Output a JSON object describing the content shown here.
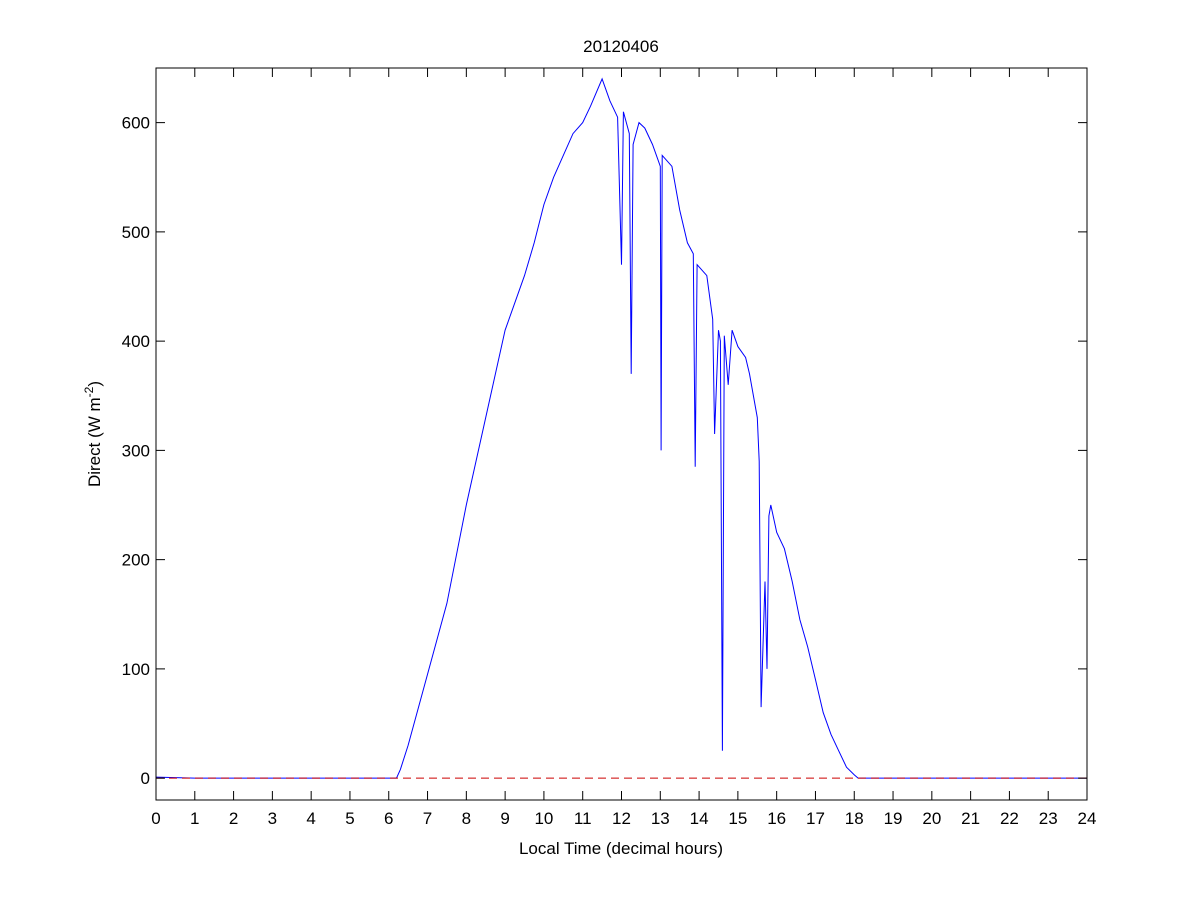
{
  "chart_data": {
    "type": "line",
    "title": "20120406",
    "xlabel": "Local Time (decimal hours)",
    "ylabel": "Direct (W m",
    "ylabel_sup": "-2",
    "ylabel_end": ")",
    "xlim": [
      0,
      24
    ],
    "ylim": [
      -20,
      650
    ],
    "xticks": [
      0,
      1,
      2,
      3,
      4,
      5,
      6,
      7,
      8,
      9,
      10,
      11,
      12,
      13,
      14,
      15,
      16,
      17,
      18,
      19,
      20,
      21,
      22,
      23,
      24
    ],
    "yticks": [
      0,
      100,
      200,
      300,
      400,
      500,
      600
    ],
    "grid": false,
    "series": [
      {
        "color": "#0000ff",
        "x": [
          0,
          1,
          2,
          3,
          4,
          5,
          6,
          6.2,
          6.3,
          6.5,
          7,
          7.5,
          8,
          8.5,
          9,
          9.5,
          9.75,
          10,
          10.25,
          10.5,
          10.75,
          11,
          11.2,
          11.5,
          11.7,
          11.9,
          12.0,
          12.05,
          12.2,
          12.25,
          12.3,
          12.45,
          12.6,
          12.8,
          13.0,
          13.02,
          13.05,
          13.3,
          13.5,
          13.7,
          13.85,
          13.9,
          13.95,
          14.2,
          14.35,
          14.4,
          14.5,
          14.55,
          14.6,
          14.65,
          14.75,
          14.85,
          15.0,
          15.2,
          15.3,
          15.5,
          15.55,
          15.6,
          15.7,
          15.75,
          15.8,
          15.85,
          16.0,
          16.2,
          16.4,
          16.6,
          16.8,
          17.0,
          17.2,
          17.4,
          17.6,
          17.8,
          18.0,
          18.1,
          19,
          20,
          21,
          22,
          23,
          24
        ],
        "y": [
          1,
          0,
          0,
          0,
          0,
          0,
          0,
          0,
          8,
          30,
          95,
          160,
          250,
          330,
          410,
          460,
          490,
          525,
          550,
          570,
          590,
          600,
          615,
          640,
          620,
          605,
          470,
          610,
          590,
          370,
          580,
          600,
          595,
          580,
          560,
          300,
          570,
          560,
          520,
          490,
          480,
          285,
          470,
          460,
          420,
          315,
          410,
          400,
          25,
          405,
          360,
          410,
          395,
          385,
          370,
          330,
          290,
          65,
          180,
          100,
          240,
          250,
          225,
          210,
          180,
          145,
          120,
          90,
          60,
          40,
          25,
          10,
          3,
          0,
          0,
          0,
          0,
          0,
          0,
          0
        ]
      },
      {
        "color": "#cc0000",
        "style": "dashed",
        "x": [
          0,
          24
        ],
        "y": [
          0,
          0
        ]
      }
    ]
  }
}
